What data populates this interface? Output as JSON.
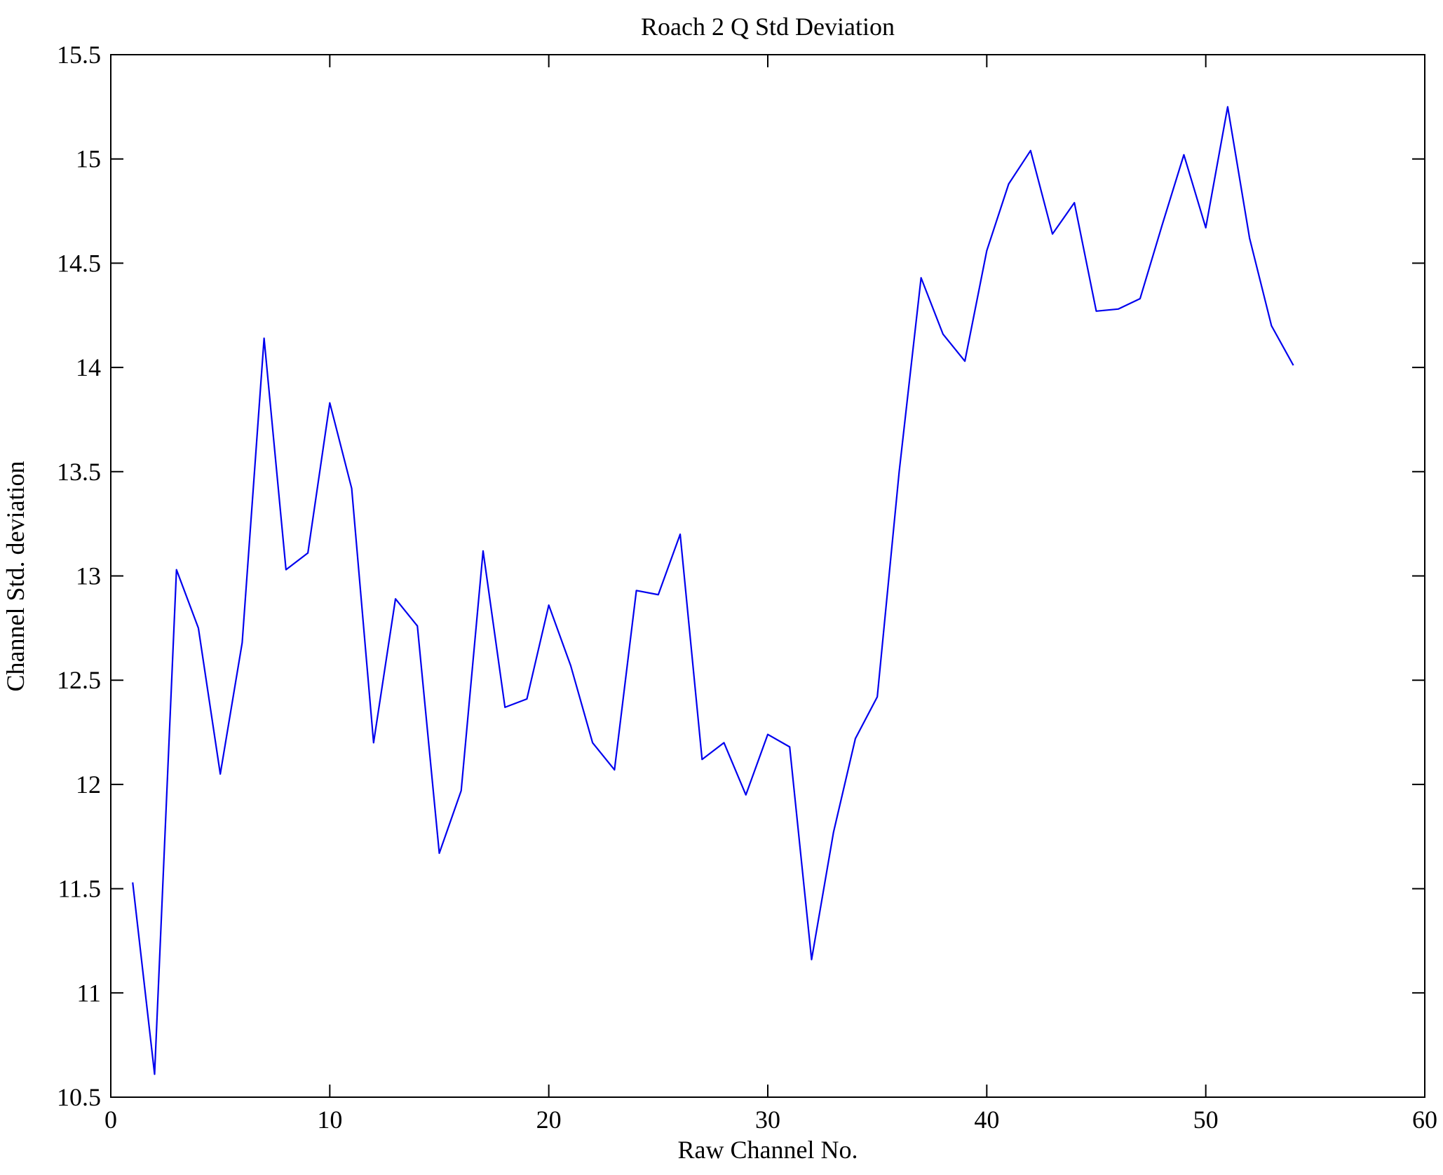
{
  "chart_data": {
    "type": "line",
    "title": "Roach 2 Q Std Deviation",
    "xlabel": "Raw Channel No.",
    "ylabel": "Channel Std. deviation",
    "xlim": [
      0,
      60
    ],
    "ylim": [
      10.5,
      15.5
    ],
    "xticks": [
      0,
      10,
      20,
      30,
      40,
      50,
      60
    ],
    "yticks": [
      10.5,
      11,
      11.5,
      12,
      12.5,
      13,
      13.5,
      14,
      14.5,
      15,
      15.5
    ],
    "grid": false,
    "legend": "none",
    "line_color": "#0000ee",
    "x": [
      1,
      2,
      3,
      4,
      5,
      6,
      7,
      8,
      9,
      10,
      11,
      12,
      13,
      14,
      15,
      16,
      17,
      18,
      19,
      20,
      21,
      22,
      23,
      24,
      25,
      26,
      27,
      28,
      29,
      30,
      31,
      32,
      33,
      34,
      35,
      36,
      37,
      38,
      39,
      40,
      41,
      42,
      43,
      44,
      45,
      46,
      47,
      48,
      49,
      50,
      51,
      52,
      53,
      54
    ],
    "y": [
      11.53,
      10.61,
      13.03,
      12.75,
      12.05,
      12.68,
      14.14,
      13.03,
      13.11,
      13.83,
      13.42,
      12.2,
      12.89,
      12.76,
      11.67,
      11.97,
      13.12,
      12.37,
      12.41,
      12.86,
      12.57,
      12.2,
      12.07,
      12.93,
      12.91,
      13.2,
      12.12,
      12.2,
      11.95,
      12.24,
      12.18,
      11.16,
      11.77,
      12.22,
      12.42,
      13.5,
      14.43,
      14.16,
      14.03,
      14.56,
      14.88,
      15.04,
      14.64,
      14.79,
      14.27,
      14.28,
      14.33,
      14.68,
      15.02,
      14.67,
      15.25,
      14.62,
      14.2,
      14.01
    ]
  }
}
